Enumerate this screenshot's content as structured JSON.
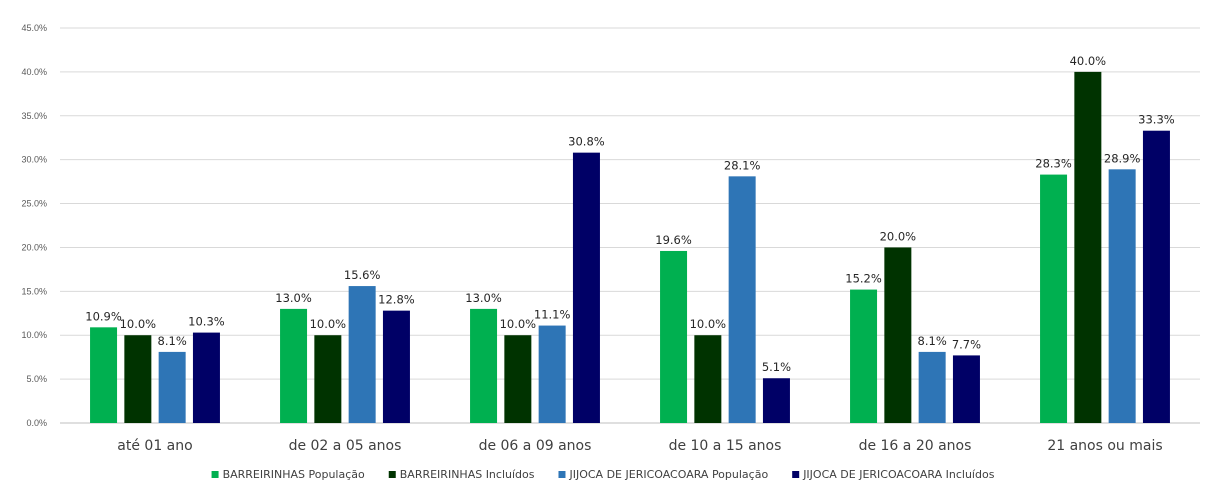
{
  "chart_data": {
    "type": "bar",
    "categories": [
      "até 01 ano",
      "de 02 a 05 anos",
      "de 06 a 09 anos",
      "de 10 a 15 anos",
      "de 16 a 20 anos",
      "21 anos ou mais"
    ],
    "series": [
      {
        "name": "BARREIRINHAS População",
        "color": "#00b050",
        "values": [
          10.9,
          13.0,
          13.0,
          19.6,
          15.2,
          28.3
        ]
      },
      {
        "name": "BARREIRINHAS Incluídos",
        "color": "#003300",
        "values": [
          10.0,
          10.0,
          10.0,
          10.0,
          20.0,
          40.0
        ]
      },
      {
        "name": "JIJOCA DE JERICOACOARA População",
        "color": "#2e75b6",
        "values": [
          8.1,
          15.6,
          11.1,
          28.1,
          8.1,
          28.9
        ]
      },
      {
        "name": "JIJOCA DE JERICOACOARA Incluídos",
        "color": "#000066",
        "values": [
          10.3,
          12.8,
          30.8,
          5.1,
          7.7,
          33.3
        ]
      }
    ],
    "ylim": [
      0,
      45
    ],
    "yticks": [
      0,
      5,
      10,
      15,
      20,
      25,
      30,
      35,
      40,
      45
    ],
    "tick_format": "%.1f%",
    "grid": true,
    "legend_position": "bottom",
    "title": "",
    "xlabel": "",
    "ylabel": ""
  }
}
